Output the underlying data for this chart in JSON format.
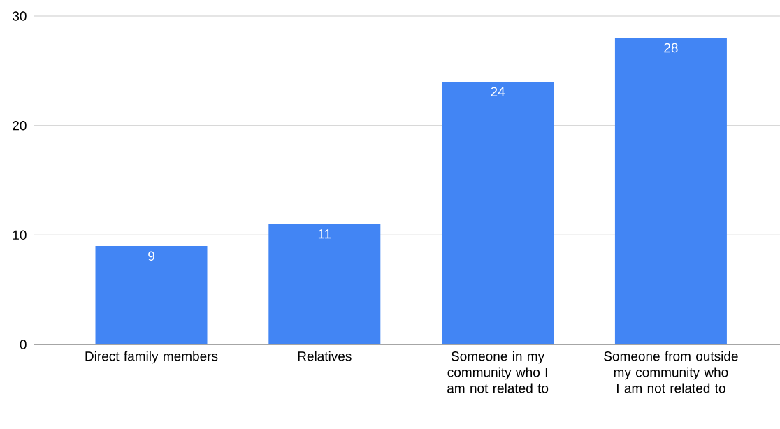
{
  "chart_data": {
    "type": "bar",
    "categories": [
      "Direct family members",
      "Relatives",
      "Someone in my community who I am not related to",
      "Someone from outside my community who I am not related to"
    ],
    "values": [
      9,
      11,
      24,
      28
    ],
    "color": "#4285f4",
    "ylim": [
      0,
      30
    ],
    "yticks": [
      0,
      10,
      20,
      30
    ],
    "grid": "y",
    "data_labels": true
  }
}
